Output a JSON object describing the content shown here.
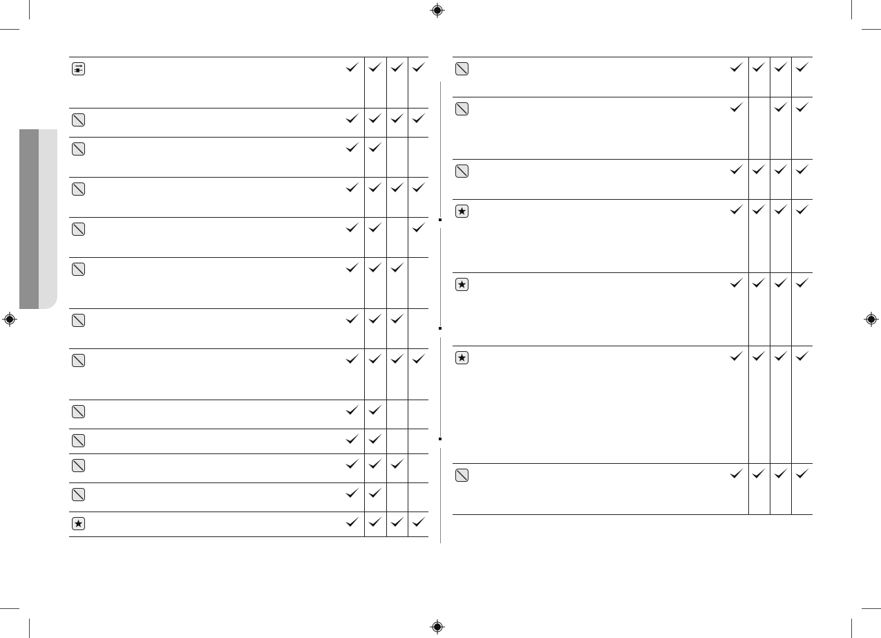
{
  "colors": {
    "line": "#222222",
    "icon_fill": "#e4e4e4",
    "tab_dark": "#8f8f8f",
    "tab_light": "#dedede"
  },
  "left_table": {
    "rows": [
      {
        "icon": "plug-icon",
        "checks": [
          true,
          true,
          true,
          true
        ]
      },
      {
        "icon": "slash-icon",
        "checks": [
          true,
          true,
          true,
          true
        ]
      },
      {
        "icon": "slash-icon",
        "checks": [
          true,
          true,
          false,
          false
        ]
      },
      {
        "icon": "slash-icon",
        "checks": [
          true,
          true,
          true,
          true
        ]
      },
      {
        "icon": "slash-icon",
        "checks": [
          true,
          true,
          false,
          true
        ]
      },
      {
        "icon": "slash-icon",
        "checks": [
          true,
          true,
          true,
          false
        ]
      },
      {
        "icon": "slash-icon",
        "checks": [
          true,
          true,
          true,
          false
        ]
      },
      {
        "icon": "slash-icon",
        "checks": [
          true,
          true,
          true,
          true
        ]
      },
      {
        "icon": "slash-icon",
        "checks": [
          true,
          true,
          false,
          false
        ]
      },
      {
        "icon": "slash-icon",
        "checks": [
          true,
          true,
          false,
          false
        ]
      },
      {
        "icon": "slash-icon",
        "checks": [
          true,
          true,
          true,
          false
        ]
      },
      {
        "icon": "slash-icon",
        "checks": [
          true,
          true,
          false,
          false
        ]
      },
      {
        "icon": "star-icon",
        "checks": [
          true,
          true,
          true,
          true
        ]
      }
    ]
  },
  "right_table": {
    "rows": [
      {
        "icon": "slash-icon",
        "checks": [
          true,
          true,
          true,
          true
        ]
      },
      {
        "icon": "slash-icon",
        "checks": [
          true,
          false,
          true,
          true
        ]
      },
      {
        "icon": "slash-icon",
        "checks": [
          true,
          true,
          true,
          true
        ]
      },
      {
        "icon": "star-icon",
        "checks": [
          true,
          true,
          true,
          true
        ]
      },
      {
        "icon": "star-icon",
        "checks": [
          true,
          true,
          true,
          true
        ]
      },
      {
        "icon": "star-icon",
        "checks": [
          true,
          true,
          true,
          true
        ]
      },
      {
        "icon": "slash-icon",
        "checks": [
          true,
          true,
          true,
          true
        ]
      }
    ]
  }
}
